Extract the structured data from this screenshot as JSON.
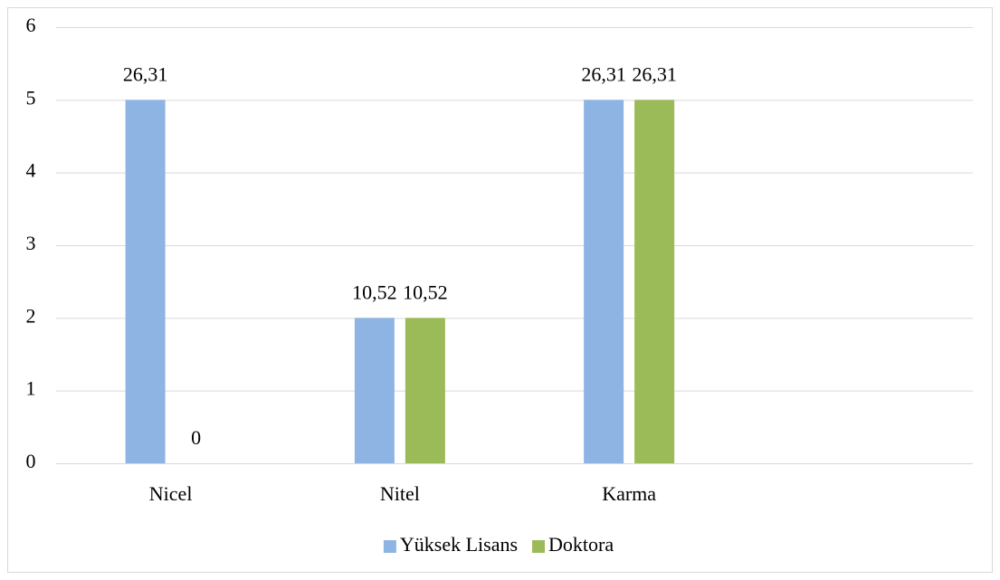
{
  "chart_data": {
    "type": "bar",
    "categories": [
      "Nicel",
      "Nitel",
      "Karma",
      null
    ],
    "series": [
      {
        "name": "Yüksek Lisans",
        "color": "#8eb4e3",
        "values": [
          5,
          2,
          5,
          null
        ],
        "data_labels": [
          "26,31",
          "10,52",
          "26,31",
          null
        ]
      },
      {
        "name": "Doktora",
        "color": "#9bbb59",
        "values": [
          0,
          2,
          5,
          null
        ],
        "data_labels": [
          "0",
          "10,52",
          "26,31",
          null
        ]
      }
    ],
    "ylim": [
      0,
      6
    ],
    "yticks": [
      0,
      1,
      2,
      3,
      4,
      5,
      6
    ],
    "grid": true,
    "legend": "bottom"
  }
}
